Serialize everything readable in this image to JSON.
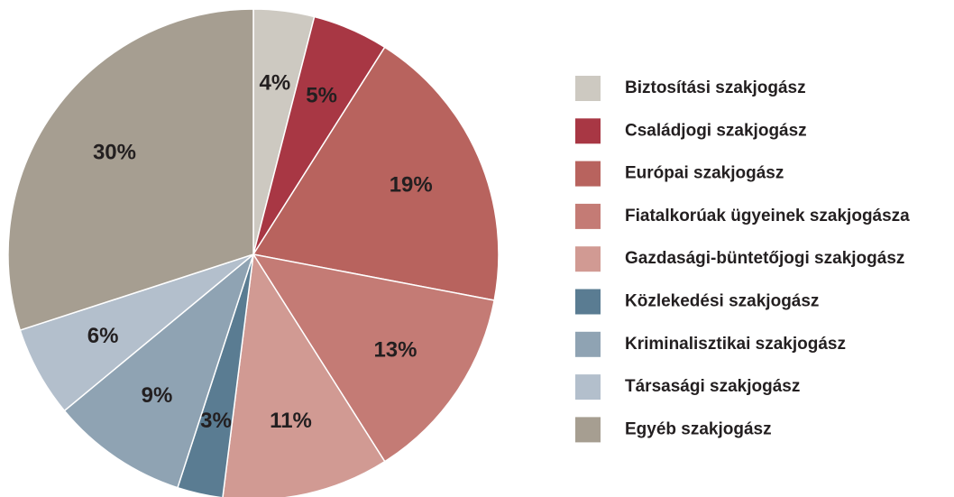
{
  "chart_data": {
    "type": "pie",
    "categories": [
      "Biztosítási szakjogász",
      "Családjogi szakjogász",
      "Európai szakjogász",
      "Fiatalkorúak ügyeinek szakjogásza",
      "Gazdasági-büntetőjogi szakjogász",
      "Közlekedési szakjogász",
      "Kriminalisztikai szakjogász",
      "Társasági szakjogász",
      "Egyéb szakjogász"
    ],
    "values": [
      4,
      5,
      19,
      13,
      11,
      3,
      9,
      6,
      30
    ],
    "value_labels": [
      "4%",
      "5%",
      "19%",
      "13%",
      "11%",
      "3%",
      "9%",
      "6%",
      "30%"
    ],
    "colors": [
      "#cdc9c1",
      "#a83744",
      "#b8635e",
      "#c47b75",
      "#d19a93",
      "#5a7c92",
      "#8fa3b3",
      "#b3bfcc",
      "#a69e91"
    ],
    "legend": "right"
  }
}
